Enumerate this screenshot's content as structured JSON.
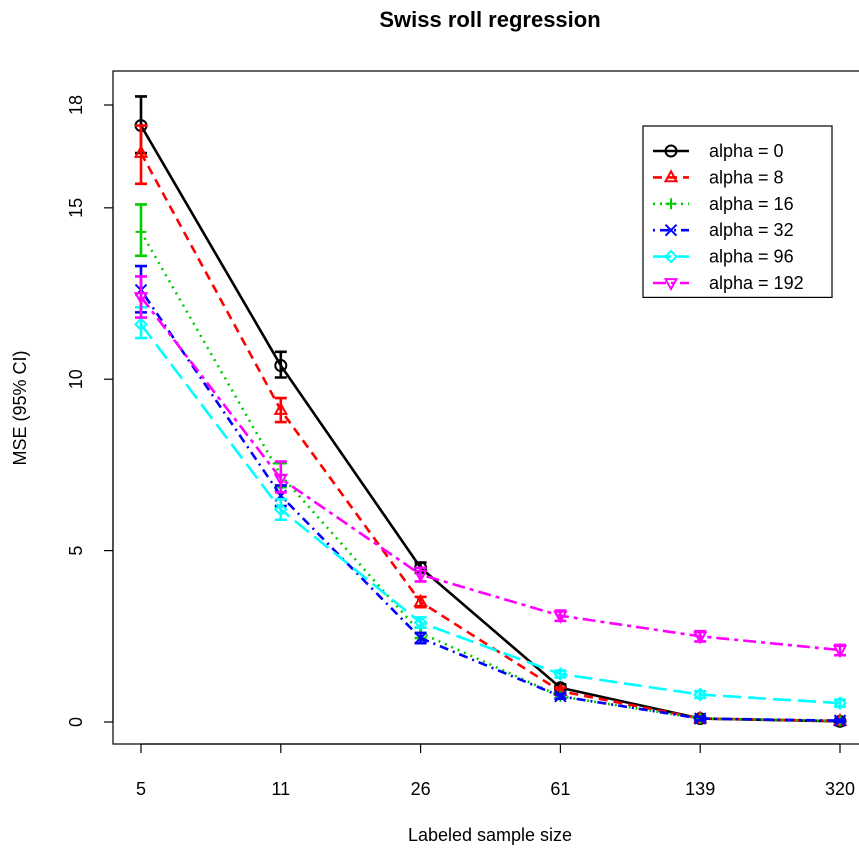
{
  "chart_data": {
    "type": "line",
    "title": "Swiss roll regression",
    "xlabel": "Labeled sample size",
    "ylabel": "MSE (95% CI)",
    "categories": [
      "5",
      "11",
      "26",
      "61",
      "139",
      "320"
    ],
    "y_ticks": [
      0,
      5,
      10,
      15,
      18
    ],
    "y_tick_labels": [
      "0",
      "5",
      "10",
      "15",
      "18"
    ],
    "ylim": [
      -0.8,
      19.0
    ],
    "grid": false,
    "legend_position": "top-right",
    "series": [
      {
        "name": "alpha = 0",
        "color": "#000000",
        "dash": "solid",
        "marker": "circle",
        "values": [
          17.4,
          10.4,
          4.5,
          1.0,
          0.1,
          0.02
        ],
        "ci": [
          [
            16.6,
            18.25
          ],
          [
            10.05,
            10.8
          ],
          [
            4.35,
            4.65
          ],
          [
            0.9,
            1.1
          ],
          [
            0.05,
            0.15
          ],
          [
            0.0,
            0.05
          ]
        ]
      },
      {
        "name": "alpha = 8",
        "color": "#ff0000",
        "dash": "dashed",
        "marker": "triangle-up",
        "values": [
          16.6,
          9.1,
          3.5,
          0.9,
          0.1,
          0.03
        ],
        "ci": [
          [
            15.7,
            17.4
          ],
          [
            8.75,
            9.45
          ],
          [
            3.35,
            3.65
          ],
          [
            0.8,
            1.0
          ],
          [
            0.05,
            0.15
          ],
          [
            0.0,
            0.06
          ]
        ]
      },
      {
        "name": "alpha = 16",
        "color": "#00cc00",
        "dash": "dotted",
        "marker": "plus",
        "values": [
          14.3,
          7.2,
          2.6,
          0.75,
          0.1,
          0.03
        ],
        "ci": [
          [
            13.6,
            15.1
          ],
          [
            6.85,
            7.55
          ],
          [
            2.45,
            2.75
          ],
          [
            0.68,
            0.82
          ],
          [
            0.05,
            0.15
          ],
          [
            0.0,
            0.06
          ]
        ]
      },
      {
        "name": "alpha = 32",
        "color": "#0000ff",
        "dash": "dotdash",
        "marker": "x",
        "values": [
          12.6,
          6.6,
          2.45,
          0.75,
          0.1,
          0.04
        ],
        "ci": [
          [
            11.95,
            13.3
          ],
          [
            6.3,
            6.9
          ],
          [
            2.3,
            2.6
          ],
          [
            0.68,
            0.82
          ],
          [
            0.05,
            0.15
          ],
          [
            0.0,
            0.07
          ]
        ]
      },
      {
        "name": "alpha = 96",
        "color": "#00ffff",
        "dash": "longdash",
        "marker": "diamond",
        "values": [
          11.6,
          6.2,
          2.9,
          1.4,
          0.8,
          0.55
        ],
        "ci": [
          [
            11.2,
            12.1
          ],
          [
            5.9,
            6.5
          ],
          [
            2.75,
            3.05
          ],
          [
            1.3,
            1.5
          ],
          [
            0.7,
            0.9
          ],
          [
            0.45,
            0.65
          ]
        ]
      },
      {
        "name": "alpha = 192",
        "color": "#ff00ff",
        "dash": "twodash",
        "marker": "triangle-down",
        "values": [
          12.4,
          7.1,
          4.3,
          3.1,
          2.5,
          2.1
        ],
        "ci": [
          [
            11.8,
            13.0
          ],
          [
            6.7,
            7.6
          ],
          [
            4.1,
            4.5
          ],
          [
            2.95,
            3.25
          ],
          [
            2.35,
            2.65
          ],
          [
            1.95,
            2.25
          ]
        ]
      }
    ]
  }
}
